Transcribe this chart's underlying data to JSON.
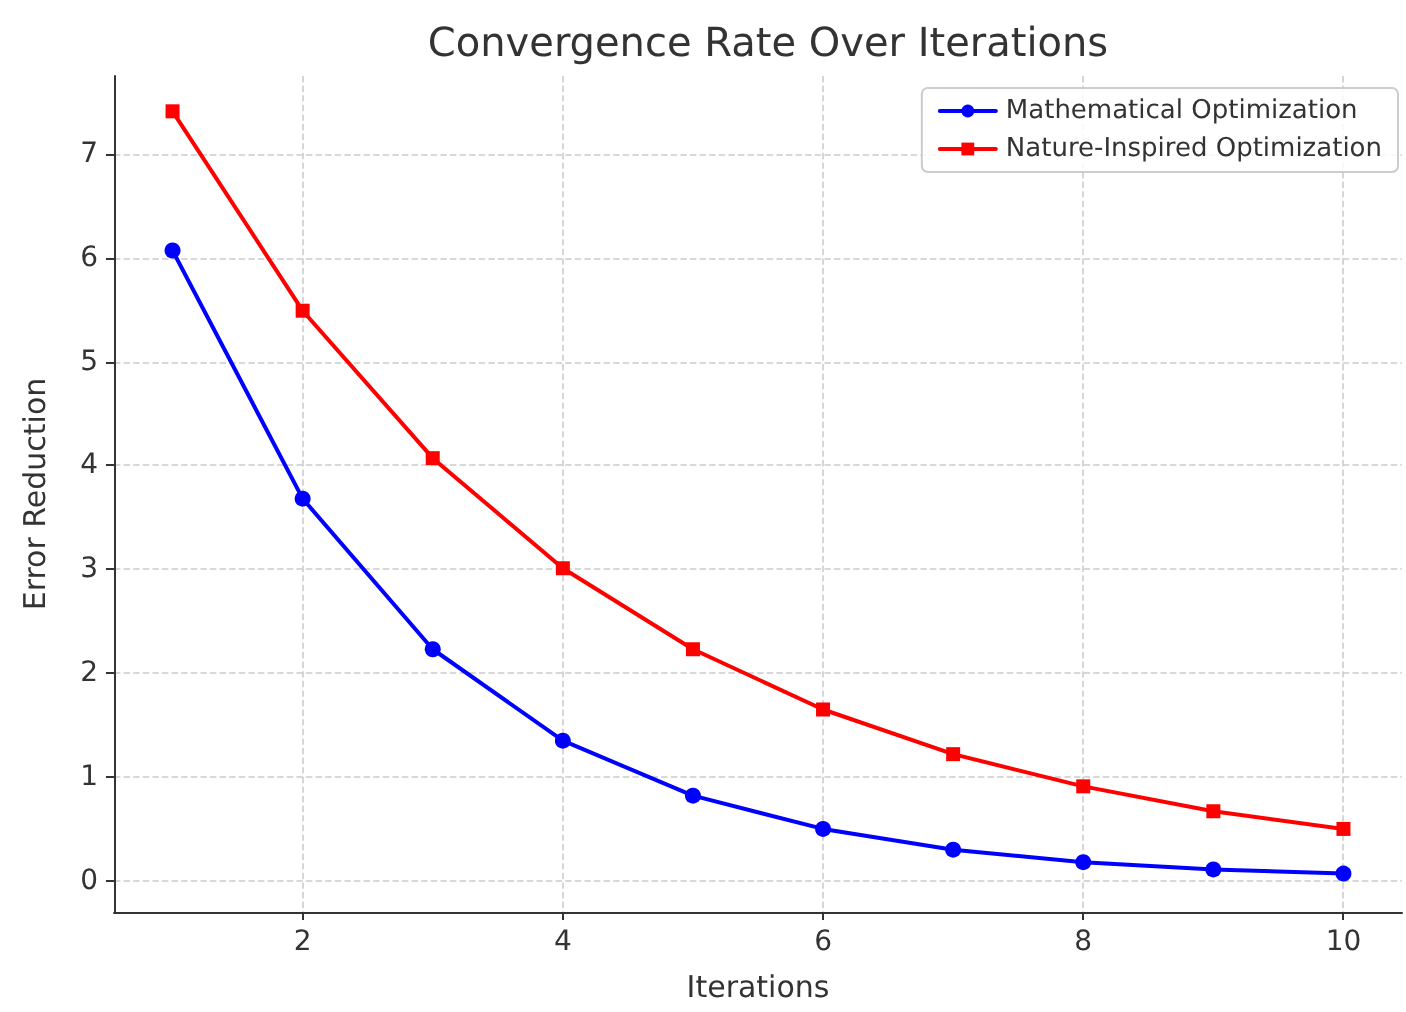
{
  "chart_data": {
    "type": "line",
    "title": "Convergence Rate Over Iterations",
    "xlabel": "Iterations",
    "ylabel": "Error Reduction",
    "x": [
      1,
      2,
      3,
      4,
      5,
      6,
      7,
      8,
      9,
      10
    ],
    "series": [
      {
        "name": "Mathematical Optimization",
        "color": "#0000ff",
        "marker": "circle",
        "values": [
          6.07,
          3.68,
          2.23,
          1.35,
          0.82,
          0.5,
          0.3,
          0.18,
          0.11,
          0.07
        ]
      },
      {
        "name": "Nature-Inspired Optimization",
        "color": "#ff0000",
        "marker": "square",
        "values": [
          7.41,
          5.49,
          4.07,
          3.01,
          2.23,
          1.65,
          1.22,
          0.91,
          0.67,
          0.5
        ]
      }
    ],
    "xlim": [
      0.55,
      10.45
    ],
    "xticks": [
      2,
      4,
      6,
      8,
      10
    ],
    "ylim": [
      -0.3,
      7.75
    ],
    "yticks": [
      0,
      1,
      2,
      3,
      4,
      5,
      6,
      7
    ],
    "grid": true,
    "legend": "top right",
    "line_style": "solid"
  }
}
